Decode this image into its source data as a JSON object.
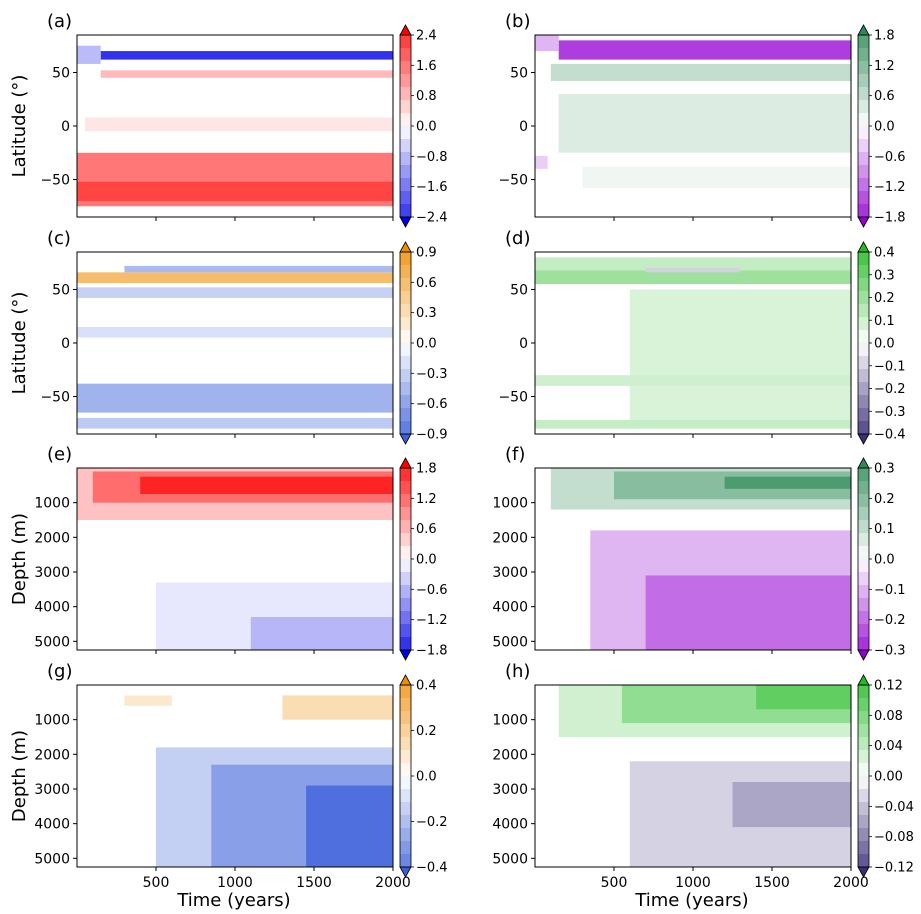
{
  "figure": {
    "xlabel": "Time (years)",
    "ylabel_lat": "Latitude (°)",
    "ylabel_depth": "Depth (m)"
  },
  "chart_data": [
    {
      "panel": "(a)",
      "type": "heatmap",
      "vertical_axis": "latitude",
      "xlim": [
        0,
        2000
      ],
      "ylim": [
        -85,
        85
      ],
      "xticks": [],
      "yticks": [
        50,
        0,
        -50
      ],
      "ytick_labels": [
        "50",
        "0",
        "−50"
      ],
      "ylabel": "Latitude (°)",
      "grid": false,
      "colormap": [
        "#0000e8",
        "#ffffff",
        "#ff0000"
      ],
      "colorbar": {
        "levels": [
          "2.4",
          "1.6",
          "0.8",
          "0.0",
          "−0.8",
          "−1.6",
          "−2.4"
        ],
        "range": [
          -3,
          3
        ],
        "extend": "both"
      },
      "features": [
        {
          "x": [
            150,
            2000
          ],
          "y": [
            62,
            70
          ],
          "value": -2.4
        },
        {
          "x": [
            0,
            150
          ],
          "y": [
            58,
            75
          ],
          "value": -0.8
        },
        {
          "x": [
            150,
            2000
          ],
          "y": [
            45,
            52
          ],
          "value": 0.8
        },
        {
          "x": [
            50,
            2000
          ],
          "y": [
            -5,
            8
          ],
          "value": 0.3
        },
        {
          "x": [
            0,
            2000
          ],
          "y": [
            -75,
            -25
          ],
          "value": 1.6
        },
        {
          "x": [
            0,
            2000
          ],
          "y": [
            -70,
            -52
          ],
          "value": 2.2
        }
      ]
    },
    {
      "panel": "(b)",
      "type": "heatmap",
      "vertical_axis": "latitude",
      "xlim": [
        0,
        2000
      ],
      "ylim": [
        -85,
        85
      ],
      "xticks": [],
      "yticks": [
        50,
        0,
        -50
      ],
      "ytick_labels": [
        "50",
        "0",
        "−50"
      ],
      "grid": false,
      "colormap": [
        "#9400d3",
        "#ffffff",
        "#2e8b57"
      ],
      "colorbar": {
        "levels": [
          "1.8",
          "1.2",
          "0.6",
          "0.0",
          "−0.6",
          "−1.2",
          "−1.8"
        ],
        "range": [
          -2.1,
          2.1
        ],
        "extend": "both"
      },
      "features": [
        {
          "x": [
            150,
            2000
          ],
          "y": [
            62,
            80
          ],
          "value": -1.6
        },
        {
          "x": [
            0,
            150
          ],
          "y": [
            70,
            85
          ],
          "value": -0.6
        },
        {
          "x": [
            100,
            2000
          ],
          "y": [
            42,
            58
          ],
          "value": 0.6
        },
        {
          "x": [
            150,
            2000
          ],
          "y": [
            -25,
            30
          ],
          "value": 0.35
        },
        {
          "x": [
            300,
            2000
          ],
          "y": [
            -58,
            -38
          ],
          "value": 0.15
        },
        {
          "x": [
            0,
            80
          ],
          "y": [
            -40,
            -28
          ],
          "value": -0.4
        }
      ]
    },
    {
      "panel": "(c)",
      "type": "heatmap",
      "vertical_axis": "latitude",
      "xlim": [
        0,
        2000
      ],
      "ylim": [
        -85,
        85
      ],
      "xticks": [],
      "yticks": [
        50,
        0,
        -50
      ],
      "ytick_labels": [
        "50",
        "0",
        "−50"
      ],
      "ylabel": "Latitude (°)",
      "grid": false,
      "colormap": [
        "#3a5fd9",
        "#ffffff",
        "#ef8c00"
      ],
      "colorbar": {
        "levels": [
          "0.9",
          "0.6",
          "0.3",
          "0.0",
          "−0.3",
          "−0.6",
          "−0.9"
        ],
        "range": [
          -1.05,
          1.05
        ],
        "extend": "both"
      },
      "features": [
        {
          "x": [
            0,
            2000
          ],
          "y": [
            56,
            66
          ],
          "value": 0.6
        },
        {
          "x": [
            300,
            2000
          ],
          "y": [
            66,
            72
          ],
          "value": -0.45
        },
        {
          "x": [
            0,
            2000
          ],
          "y": [
            42,
            52
          ],
          "value": -0.3
        },
        {
          "x": [
            0,
            2000
          ],
          "y": [
            5,
            15
          ],
          "value": -0.2
        },
        {
          "x": [
            0,
            2000
          ],
          "y": [
            -65,
            -38
          ],
          "value": -0.5
        },
        {
          "x": [
            0,
            2000
          ],
          "y": [
            -80,
            -70
          ],
          "value": -0.35
        }
      ]
    },
    {
      "panel": "(d)",
      "type": "heatmap",
      "vertical_axis": "latitude",
      "xlim": [
        0,
        2000
      ],
      "ylim": [
        -85,
        85
      ],
      "xticks": [],
      "yticks": [
        50,
        0,
        -50
      ],
      "ytick_labels": [
        "50",
        "0",
        "−50"
      ],
      "grid": false,
      "colormap": [
        "#3b2f7a",
        "#ffffff",
        "#22bb22"
      ],
      "colorbar": {
        "levels": [
          "0.4",
          "0.3",
          "0.2",
          "0.1",
          "0.0",
          "−0.1",
          "−0.2",
          "−0.3",
          "−0.4"
        ],
        "range": [
          -0.45,
          0.45
        ],
        "extend": "both"
      },
      "features": [
        {
          "x": [
            0,
            2000
          ],
          "y": [
            55,
            68
          ],
          "value": 0.2
        },
        {
          "x": [
            0,
            2000
          ],
          "y": [
            68,
            80
          ],
          "value": 0.12
        },
        {
          "x": [
            600,
            2000
          ],
          "y": [
            -80,
            50
          ],
          "value": 0.08
        },
        {
          "x": [
            0,
            2000
          ],
          "y": [
            -40,
            -30
          ],
          "value": 0.1
        },
        {
          "x": [
            0,
            2000
          ],
          "y": [
            -80,
            -72
          ],
          "value": 0.12
        },
        {
          "x": [
            700,
            1300
          ],
          "y": [
            66,
            70
          ],
          "value": -0.1
        }
      ]
    },
    {
      "panel": "(e)",
      "type": "heatmap",
      "vertical_axis": "depth",
      "xlim": [
        0,
        2000
      ],
      "ylim": [
        5250,
        0
      ],
      "xticks": [],
      "yticks": [
        1000,
        2000,
        3000,
        4000,
        5000
      ],
      "ytick_labels": [
        "1000",
        "2000",
        "3000",
        "4000",
        "5000"
      ],
      "ylabel": "Depth (m)",
      "grid": false,
      "colormap": [
        "#0000e8",
        "#ffffff",
        "#ff0000"
      ],
      "colorbar": {
        "levels": [
          "1.8",
          "1.2",
          "0.6",
          "0.0",
          "−0.6",
          "−1.2",
          "−1.8"
        ],
        "range": [
          -2.1,
          2.1
        ],
        "extend": "both"
      },
      "features": [
        {
          "x": [
            0,
            2000
          ],
          "y": [
            0,
            1500
          ],
          "value": 0.5
        },
        {
          "x": [
            100,
            2000
          ],
          "y": [
            100,
            1000
          ],
          "value": 1.2
        },
        {
          "x": [
            400,
            2000
          ],
          "y": [
            250,
            750
          ],
          "value": 1.8
        },
        {
          "x": [
            500,
            2000
          ],
          "y": [
            3300,
            5250
          ],
          "value": -0.2
        },
        {
          "x": [
            1100,
            2000
          ],
          "y": [
            4300,
            5250
          ],
          "value": -0.6
        }
      ]
    },
    {
      "panel": "(f)",
      "type": "heatmap",
      "vertical_axis": "depth",
      "xlim": [
        0,
        2000
      ],
      "ylim": [
        5250,
        0
      ],
      "xticks": [],
      "yticks": [
        1000,
        2000,
        3000,
        4000,
        5000
      ],
      "ytick_labels": [
        "1000",
        "2000",
        "3000",
        "4000",
        "5000"
      ],
      "grid": false,
      "colormap": [
        "#9400d3",
        "#ffffff",
        "#2e8b57"
      ],
      "colorbar": {
        "levels": [
          "0.3",
          "0.2",
          "0.1",
          "0.0",
          "−0.1",
          "−0.2",
          "−0.3"
        ],
        "range": [
          -0.35,
          0.35
        ],
        "extend": "both"
      },
      "features": [
        {
          "x": [
            100,
            2000
          ],
          "y": [
            0,
            1200
          ],
          "value": 0.1
        },
        {
          "x": [
            500,
            2000
          ],
          "y": [
            100,
            900
          ],
          "value": 0.2
        },
        {
          "x": [
            1200,
            2000
          ],
          "y": [
            250,
            600
          ],
          "value": 0.3
        },
        {
          "x": [
            350,
            2000
          ],
          "y": [
            1800,
            5250
          ],
          "value": -0.1
        },
        {
          "x": [
            700,
            2000
          ],
          "y": [
            3100,
            5250
          ],
          "value": -0.2
        }
      ]
    },
    {
      "panel": "(g)",
      "type": "heatmap",
      "vertical_axis": "depth",
      "xlim": [
        0,
        2000
      ],
      "ylim": [
        5250,
        0
      ],
      "xticks": [
        500,
        1000,
        1500,
        2000
      ],
      "xtick_labels": [
        "500",
        "1000",
        "1500",
        "2000"
      ],
      "yticks": [
        1000,
        2000,
        3000,
        4000,
        5000
      ],
      "ytick_labels": [
        "1000",
        "2000",
        "3000",
        "4000",
        "5000"
      ],
      "xlabel": "Time (years)",
      "ylabel": "Depth (m)",
      "grid": false,
      "colormap": [
        "#3a5fd9",
        "#ffffff",
        "#ef8c00"
      ],
      "colorbar": {
        "levels": [
          "0.4",
          "0.2",
          "0.0",
          "−0.2",
          "−0.4"
        ],
        "range": [
          -0.5,
          0.5
        ],
        "extend": "both"
      },
      "features": [
        {
          "x": [
            1300,
            2000
          ],
          "y": [
            300,
            1000
          ],
          "value": 0.15
        },
        {
          "x": [
            300,
            600
          ],
          "y": [
            300,
            600
          ],
          "value": 0.1
        },
        {
          "x": [
            500,
            2000
          ],
          "y": [
            1800,
            5250
          ],
          "value": -0.15
        },
        {
          "x": [
            850,
            2000
          ],
          "y": [
            2300,
            5250
          ],
          "value": -0.3
        },
        {
          "x": [
            1450,
            2000
          ],
          "y": [
            2900,
            5250
          ],
          "value": -0.45
        }
      ]
    },
    {
      "panel": "(h)",
      "type": "heatmap",
      "vertical_axis": "depth",
      "xlim": [
        0,
        2000
      ],
      "ylim": [
        5250,
        0
      ],
      "xticks": [
        500,
        1000,
        1500,
        2000
      ],
      "xtick_labels": [
        "500",
        "1000",
        "1500",
        "2000"
      ],
      "yticks": [
        1000,
        2000,
        3000,
        4000,
        5000
      ],
      "ytick_labels": [
        "1000",
        "2000",
        "3000",
        "4000",
        "5000"
      ],
      "xlabel": "Time (years)",
      "grid": false,
      "colormap": [
        "#3b2f7a",
        "#ffffff",
        "#22bb22"
      ],
      "colorbar": {
        "levels": [
          "0.12",
          "0.08",
          "0.04",
          "0.00",
          "−0.04",
          "−0.08",
          "−0.12"
        ],
        "range": [
          -0.14,
          0.14
        ],
        "extend": "both"
      },
      "features": [
        {
          "x": [
            150,
            2000
          ],
          "y": [
            0,
            1500
          ],
          "value": 0.03
        },
        {
          "x": [
            550,
            2000
          ],
          "y": [
            0,
            1100
          ],
          "value": 0.07
        },
        {
          "x": [
            1400,
            2000
          ],
          "y": [
            0,
            700
          ],
          "value": 0.1
        },
        {
          "x": [
            600,
            2000
          ],
          "y": [
            2200,
            5250
          ],
          "value": -0.03
        },
        {
          "x": [
            1250,
            2000
          ],
          "y": [
            2800,
            4100
          ],
          "value": -0.06
        }
      ]
    }
  ]
}
